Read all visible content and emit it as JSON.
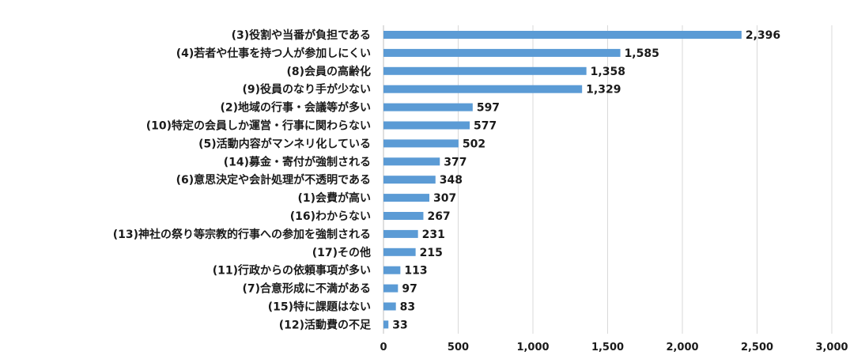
{
  "chart_data": {
    "type": "bar",
    "orientation": "horizontal",
    "categories": [
      "(3)役割や当番が負担である",
      "(4)若者や仕事を持つ人が参加しにくい",
      "(8)会員の高齢化",
      "(9)役員のなり手が少ない",
      "(2)地域の行事・会議等が多い",
      "(10)特定の会員しか運営・行事に関わらない",
      "(5)活動内容がマンネリ化している",
      "(14)募金・寄付が強制される",
      "(6)意思決定や会計処理が不透明である",
      "(1)会費が高い",
      "(16)わからない",
      "(13)神社の祭り等宗教的行事への参加を強制される",
      "(17)その他",
      "(11)行政からの依頼事項が多い",
      "(7)合意形成に不満がある",
      "(15)特に課題はない",
      "(12)活動費の不足"
    ],
    "values": [
      2396,
      1585,
      1358,
      1329,
      597,
      577,
      502,
      377,
      348,
      307,
      267,
      231,
      215,
      113,
      97,
      83,
      33
    ],
    "value_labels": [
      "2,396",
      "1,585",
      "1,358",
      "1,329",
      "597",
      "577",
      "502",
      "377",
      "348",
      "307",
      "267",
      "231",
      "215",
      "113",
      "97",
      "83",
      "33"
    ],
    "xlim": [
      0,
      3000
    ],
    "xticks": [
      0,
      500,
      1000,
      1500,
      2000,
      2500,
      3000
    ],
    "xtick_labels": [
      "0",
      "500",
      "1,000",
      "1,500",
      "2,000",
      "2,500",
      "3,000"
    ],
    "grid": "vertical",
    "legend": "none",
    "bar_color": "#5b9bd5",
    "grid_color": "#d9d9d9",
    "axis_color": "#bfbfbf",
    "text_color": "#1a1a1a"
  }
}
